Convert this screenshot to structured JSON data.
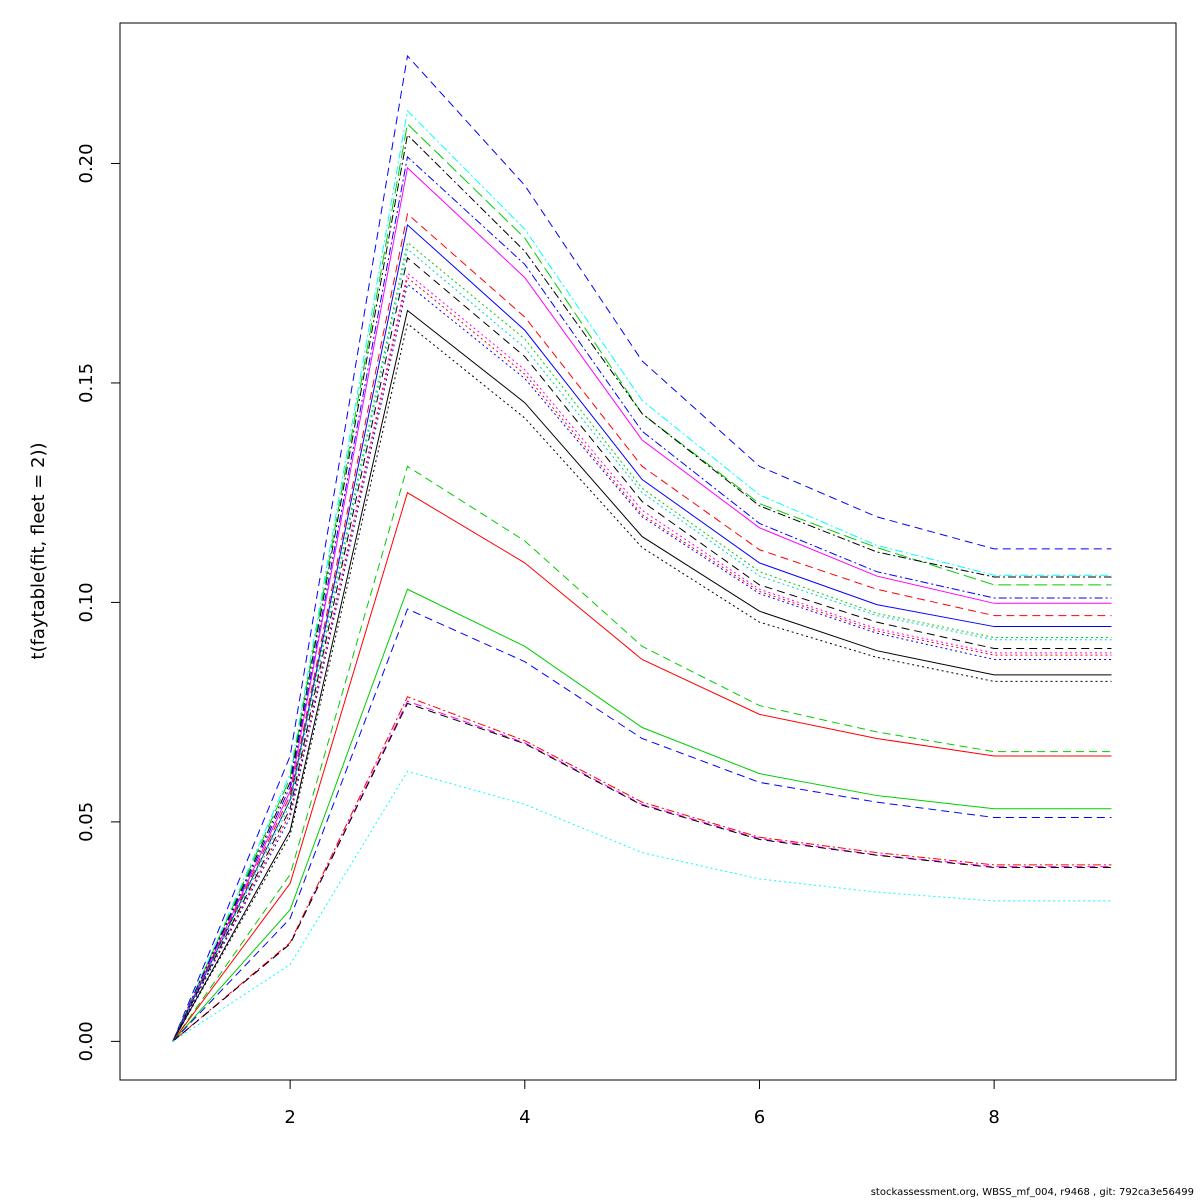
{
  "chart_data": {
    "type": "line",
    "title": "",
    "xlabel": "",
    "ylabel": "t(faytable(fit, fleet = 2))",
    "xlim": [
      0.55,
      9.55
    ],
    "ylim": [
      -0.0088,
      0.232
    ],
    "x_ticks": [
      2,
      4,
      6,
      8
    ],
    "y_ticks": [
      0.0,
      0.05,
      0.1,
      0.15,
      0.2
    ],
    "y_tick_labels": [
      "0.00",
      "0.05",
      "0.10",
      "0.15",
      "0.20"
    ],
    "grid": false,
    "legend": "none",
    "x": [
      1,
      2,
      3,
      4,
      5,
      6,
      7,
      8,
      9
    ],
    "series": [
      {
        "color": "#0000ff",
        "dash": "dashed",
        "values": [
          0,
          0.065,
          0.2245,
          0.195,
          0.155,
          0.131,
          0.1195,
          0.1122,
          0.1122
        ]
      },
      {
        "color": "#00ffff",
        "dash": "dashdot",
        "values": [
          0,
          0.061,
          0.212,
          0.185,
          0.146,
          0.1245,
          0.113,
          0.1062,
          0.1062
        ]
      },
      {
        "color": "#00cd00",
        "dash": "longdash",
        "values": [
          0,
          0.06,
          0.209,
          0.183,
          0.143,
          0.1225,
          0.1125,
          0.104,
          0.104
        ]
      },
      {
        "color": "#000000",
        "dash": "dashdot",
        "values": [
          0,
          0.059,
          0.2065,
          0.18,
          0.143,
          0.122,
          0.1115,
          0.1058,
          0.1058
        ]
      },
      {
        "color": "#0000ff",
        "dash": "dashdot",
        "values": [
          0,
          0.058,
          0.2015,
          0.177,
          0.139,
          0.118,
          0.107,
          0.101,
          0.101
        ]
      },
      {
        "color": "#ff00ff",
        "dash": "solid",
        "values": [
          0,
          0.057,
          0.199,
          0.174,
          0.137,
          0.117,
          0.106,
          0.0998,
          0.0998
        ]
      },
      {
        "color": "#ff0000",
        "dash": "dashed",
        "values": [
          0,
          0.056,
          0.1885,
          0.165,
          0.131,
          0.112,
          0.103,
          0.097,
          0.097
        ]
      },
      {
        "color": "#0000ff",
        "dash": "solid",
        "values": [
          0,
          0.055,
          0.186,
          0.162,
          0.128,
          0.109,
          0.0995,
          0.0945,
          0.0945
        ]
      },
      {
        "color": "#00cd00",
        "dash": "dotted",
        "values": [
          0,
          0.055,
          0.182,
          0.16,
          0.126,
          0.107,
          0.0975,
          0.092,
          0.092
        ]
      },
      {
        "color": "#00cdcd",
        "dash": "dotted",
        "values": [
          0,
          0.054,
          0.1805,
          0.158,
          0.125,
          0.106,
          0.097,
          0.0915,
          0.0915
        ]
      },
      {
        "color": "#000000",
        "dash": "dashed",
        "values": [
          0,
          0.053,
          0.1785,
          0.156,
          0.123,
          0.104,
          0.0955,
          0.0895,
          0.0895
        ]
      },
      {
        "color": "#ff00ff",
        "dash": "dotted",
        "values": [
          0,
          0.052,
          0.175,
          0.153,
          0.121,
          0.103,
          0.094,
          0.0885,
          0.0885
        ]
      },
      {
        "color": "#ff0000",
        "dash": "dotted",
        "values": [
          0,
          0.052,
          0.174,
          0.152,
          0.12,
          0.1025,
          0.0935,
          0.088,
          0.088
        ]
      },
      {
        "color": "#0000ff",
        "dash": "dotted",
        "values": [
          0,
          0.051,
          0.1725,
          0.151,
          0.1195,
          0.102,
          0.093,
          0.087,
          0.087
        ]
      },
      {
        "color": "#000000",
        "dash": "solid",
        "values": [
          0,
          0.048,
          0.1665,
          0.1455,
          0.115,
          0.098,
          0.089,
          0.0835,
          0.0835
        ]
      },
      {
        "color": "#000000",
        "dash": "dotted",
        "values": [
          0,
          0.047,
          0.1635,
          0.142,
          0.1125,
          0.0955,
          0.0875,
          0.082,
          0.082
        ]
      },
      {
        "color": "#00cd00",
        "dash": "dashed",
        "values": [
          0,
          0.038,
          0.131,
          0.114,
          0.09,
          0.0765,
          0.0705,
          0.066,
          0.066
        ]
      },
      {
        "color": "#ff0000",
        "dash": "solid",
        "values": [
          0,
          0.036,
          0.125,
          0.109,
          0.087,
          0.0745,
          0.069,
          0.065,
          0.065
        ]
      },
      {
        "color": "#00cd00",
        "dash": "solid",
        "values": [
          0,
          0.03,
          0.103,
          0.09,
          0.0715,
          0.061,
          0.056,
          0.053,
          0.053
        ]
      },
      {
        "color": "#0000ff",
        "dash": "dashed",
        "values": [
          0,
          0.028,
          0.0985,
          0.0865,
          0.069,
          0.059,
          0.0545,
          0.051,
          0.051
        ]
      },
      {
        "color": "#ff0000",
        "dash": "dashdot",
        "values": [
          0,
          0.0225,
          0.0785,
          0.0685,
          0.0545,
          0.0465,
          0.043,
          0.0402,
          0.0402
        ]
      },
      {
        "color": "#ff00ff",
        "dash": "dashed",
        "values": [
          0,
          0.0222,
          0.0775,
          0.068,
          0.054,
          0.0462,
          0.0425,
          0.0398,
          0.0398
        ]
      },
      {
        "color": "#000000",
        "dash": "dashed",
        "values": [
          0,
          0.0222,
          0.077,
          0.0678,
          0.0538,
          0.046,
          0.0424,
          0.0396,
          0.0396
        ]
      },
      {
        "color": "#00ffff",
        "dash": "dotted",
        "values": [
          0,
          0.0175,
          0.0615,
          0.054,
          0.043,
          0.037,
          0.034,
          0.032,
          0.032
        ]
      }
    ]
  },
  "footer": {
    "text": "stockassessment.org, WBSS_mf_004, r9468 , git: 792ca3e56499"
  }
}
